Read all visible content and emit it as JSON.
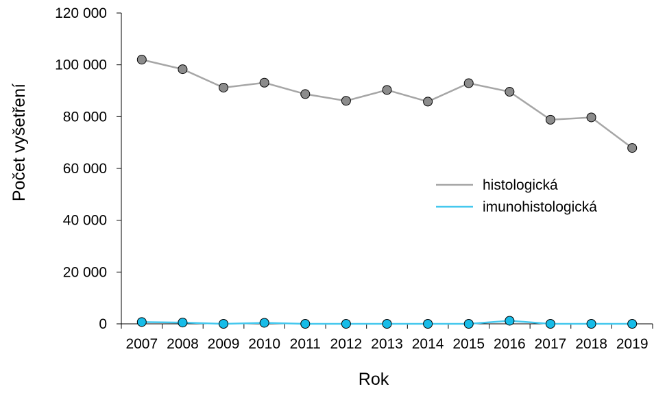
{
  "chart_data": {
    "type": "line",
    "title": "",
    "xlabel": "Rok",
    "ylabel": "Počet vyšetření",
    "x": [
      "2007",
      "2008",
      "2009",
      "2010",
      "2011",
      "2012",
      "2013",
      "2014",
      "2015",
      "2016",
      "2017",
      "2018",
      "2019"
    ],
    "ylim": [
      0,
      120000
    ],
    "yticks": [
      0,
      20000,
      40000,
      60000,
      80000,
      100000,
      120000
    ],
    "ytick_labels": [
      "0",
      "20 000",
      "40 000",
      "60 000",
      "80 000",
      "100 000",
      "120 000"
    ],
    "grid": false,
    "legend_position": "right",
    "series": [
      {
        "name": "histologická",
        "line_color": "#a6a6a6",
        "marker_color": "#8c8c8c",
        "values": [
          102000,
          98300,
          91200,
          93100,
          88700,
          86100,
          90300,
          85800,
          92900,
          89600,
          78800,
          79700,
          67900
        ]
      },
      {
        "name": "imunohistologická",
        "line_color": "#45c8ee",
        "marker_color": "#17bce8",
        "values": [
          700,
          500,
          0,
          400,
          0,
          0,
          0,
          0,
          0,
          1200,
          0,
          0,
          0
        ]
      }
    ]
  }
}
